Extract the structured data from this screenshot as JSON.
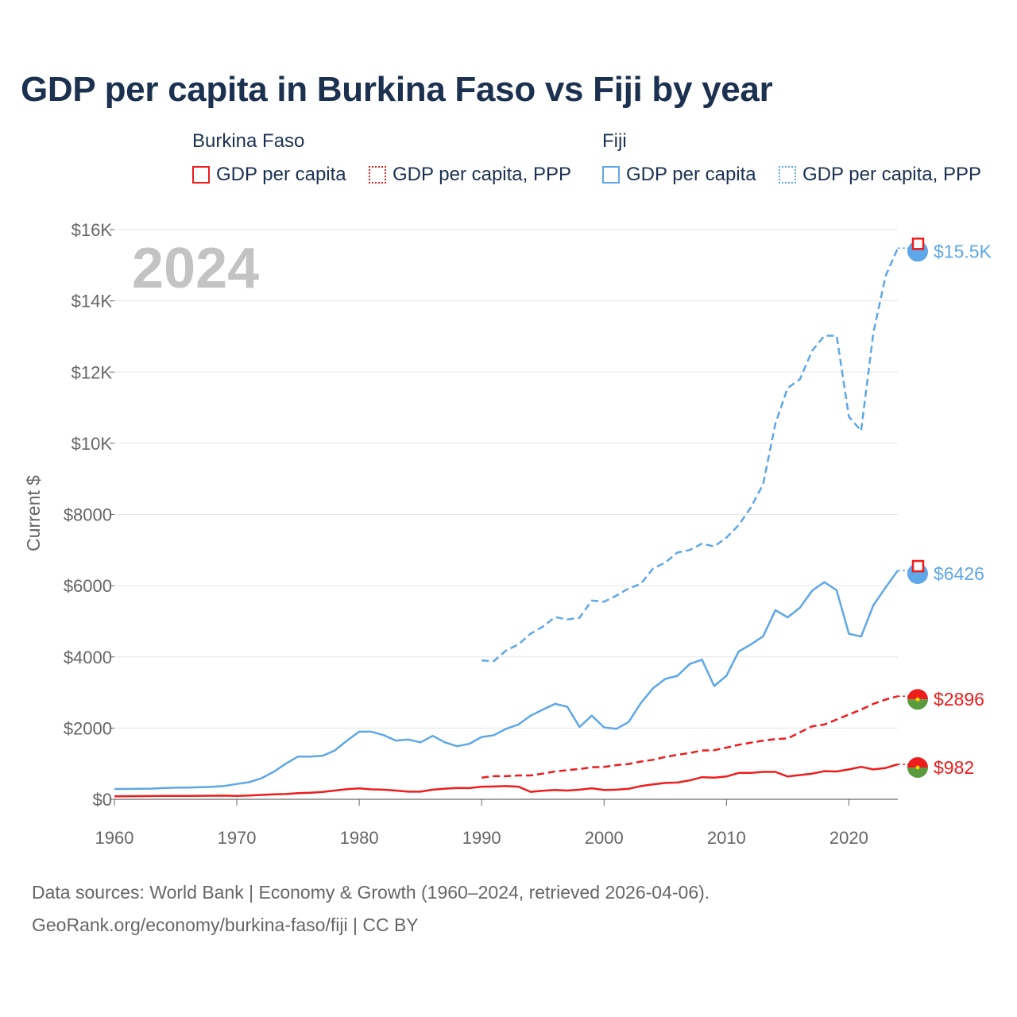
{
  "title": "GDP per capita in Burkina Faso vs Fiji by year",
  "legend": {
    "groups": [
      {
        "name": "Burkina Faso",
        "color": "#ee1c1c",
        "items": [
          {
            "label": "GDP per capita",
            "style": "solid"
          },
          {
            "label": "GDP per capita, PPP",
            "style": "dotted"
          }
        ]
      },
      {
        "name": "Fiji",
        "color": "#5ea7e8",
        "items": [
          {
            "label": "GDP per capita",
            "style": "solid"
          },
          {
            "label": "GDP per capita, PPP",
            "style": "dotted"
          }
        ]
      }
    ]
  },
  "year_label": "2024",
  "footer": {
    "line1": "Data sources: World Bank | Economy & Growth (1960–2024, retrieved 2026-04-06).",
    "line2": "GeoRank.org/economy/burkina-faso/fiji | CC BY"
  },
  "chart_data": {
    "type": "line",
    "title": "GDP per capita in Burkina Faso vs Fiji by year",
    "xlabel": "",
    "ylabel": "Current $",
    "xlim": [
      1960,
      2024
    ],
    "ylim": [
      0,
      16000
    ],
    "x_ticks": [
      1960,
      1970,
      1980,
      1990,
      2000,
      2010,
      2020
    ],
    "y_ticks": [
      0,
      2000,
      4000,
      6000,
      8000,
      10000,
      12000,
      14000,
      16000
    ],
    "y_tick_labels": [
      "$0",
      "$2000",
      "$4000",
      "$6000",
      "$8000",
      "$10K",
      "$12K",
      "$14K",
      "$16K"
    ],
    "grid": true,
    "series": [
      {
        "name": "Fiji GDP per capita, PPP",
        "country": "Fiji",
        "color": "#5ea7e8",
        "dash": "dashed",
        "end_label": "$15.5K",
        "points": [
          [
            1990,
            3900
          ],
          [
            1991,
            3880
          ],
          [
            1992,
            4180
          ],
          [
            1993,
            4350
          ],
          [
            1994,
            4650
          ],
          [
            1995,
            4850
          ],
          [
            1996,
            5120
          ],
          [
            1997,
            5050
          ],
          [
            1998,
            5100
          ],
          [
            1999,
            5580
          ],
          [
            2000,
            5550
          ],
          [
            2001,
            5720
          ],
          [
            2002,
            5920
          ],
          [
            2003,
            6050
          ],
          [
            2004,
            6480
          ],
          [
            2005,
            6650
          ],
          [
            2006,
            6930
          ],
          [
            2007,
            7000
          ],
          [
            2008,
            7180
          ],
          [
            2009,
            7100
          ],
          [
            2010,
            7350
          ],
          [
            2011,
            7700
          ],
          [
            2012,
            8200
          ],
          [
            2013,
            8850
          ],
          [
            2014,
            10550
          ],
          [
            2015,
            11550
          ],
          [
            2016,
            11800
          ],
          [
            2017,
            12600
          ],
          [
            2018,
            13020
          ],
          [
            2019,
            13020
          ],
          [
            2020,
            10750
          ],
          [
            2021,
            10350
          ],
          [
            2022,
            13100
          ],
          [
            2023,
            14700
          ],
          [
            2024,
            15480
          ]
        ]
      },
      {
        "name": "Fiji GDP per capita",
        "country": "Fiji",
        "color": "#5ea7e8",
        "dash": "solid",
        "end_label": "$6426",
        "points": [
          [
            1960,
            290
          ],
          [
            1961,
            290
          ],
          [
            1962,
            295
          ],
          [
            1963,
            300
          ],
          [
            1964,
            315
          ],
          [
            1965,
            325
          ],
          [
            1966,
            330
          ],
          [
            1967,
            340
          ],
          [
            1968,
            350
          ],
          [
            1969,
            375
          ],
          [
            1970,
            430
          ],
          [
            1971,
            480
          ],
          [
            1972,
            590
          ],
          [
            1973,
            770
          ],
          [
            1974,
            1000
          ],
          [
            1975,
            1200
          ],
          [
            1976,
            1200
          ],
          [
            1977,
            1220
          ],
          [
            1978,
            1370
          ],
          [
            1979,
            1650
          ],
          [
            1980,
            1900
          ],
          [
            1981,
            1900
          ],
          [
            1982,
            1800
          ],
          [
            1983,
            1650
          ],
          [
            1984,
            1680
          ],
          [
            1985,
            1600
          ],
          [
            1986,
            1780
          ],
          [
            1987,
            1600
          ],
          [
            1988,
            1490
          ],
          [
            1989,
            1560
          ],
          [
            1990,
            1750
          ],
          [
            1991,
            1800
          ],
          [
            1992,
            1980
          ],
          [
            1993,
            2100
          ],
          [
            1994,
            2350
          ],
          [
            1995,
            2520
          ],
          [
            1996,
            2680
          ],
          [
            1997,
            2600
          ],
          [
            1998,
            2030
          ],
          [
            1999,
            2350
          ],
          [
            2000,
            2020
          ],
          [
            2001,
            1980
          ],
          [
            2002,
            2170
          ],
          [
            2003,
            2700
          ],
          [
            2004,
            3120
          ],
          [
            2005,
            3380
          ],
          [
            2006,
            3470
          ],
          [
            2007,
            3800
          ],
          [
            2008,
            3920
          ],
          [
            2009,
            3180
          ],
          [
            2010,
            3470
          ],
          [
            2011,
            4150
          ],
          [
            2012,
            4350
          ],
          [
            2013,
            4580
          ],
          [
            2014,
            5310
          ],
          [
            2015,
            5110
          ],
          [
            2016,
            5380
          ],
          [
            2017,
            5860
          ],
          [
            2018,
            6100
          ],
          [
            2019,
            5870
          ],
          [
            2020,
            4650
          ],
          [
            2021,
            4570
          ],
          [
            2022,
            5450
          ],
          [
            2023,
            5950
          ],
          [
            2024,
            6426
          ]
        ]
      },
      {
        "name": "Burkina Faso GDP per capita, PPP",
        "country": "Burkina Faso",
        "color": "#ee1c1c",
        "dash": "dashed",
        "end_label": "$2896",
        "points": [
          [
            1990,
            610
          ],
          [
            1991,
            650
          ],
          [
            1992,
            650
          ],
          [
            1993,
            670
          ],
          [
            1994,
            670
          ],
          [
            1995,
            720
          ],
          [
            1996,
            780
          ],
          [
            1997,
            820
          ],
          [
            1998,
            850
          ],
          [
            1999,
            900
          ],
          [
            2000,
            910
          ],
          [
            2001,
            960
          ],
          [
            2002,
            990
          ],
          [
            2003,
            1060
          ],
          [
            2004,
            1110
          ],
          [
            2005,
            1190
          ],
          [
            2006,
            1250
          ],
          [
            2007,
            1300
          ],
          [
            2008,
            1370
          ],
          [
            2009,
            1380
          ],
          [
            2010,
            1450
          ],
          [
            2011,
            1530
          ],
          [
            2012,
            1590
          ],
          [
            2013,
            1650
          ],
          [
            2014,
            1690
          ],
          [
            2015,
            1710
          ],
          [
            2016,
            1880
          ],
          [
            2017,
            2050
          ],
          [
            2018,
            2100
          ],
          [
            2019,
            2240
          ],
          [
            2020,
            2380
          ],
          [
            2021,
            2520
          ],
          [
            2022,
            2680
          ],
          [
            2023,
            2800
          ],
          [
            2024,
            2896
          ]
        ]
      },
      {
        "name": "Burkina Faso GDP per capita",
        "country": "Burkina Faso",
        "color": "#ee1c1c",
        "dash": "solid",
        "end_label": "$982",
        "points": [
          [
            1960,
            85
          ],
          [
            1961,
            88
          ],
          [
            1962,
            90
          ],
          [
            1963,
            92
          ],
          [
            1964,
            93
          ],
          [
            1965,
            95
          ],
          [
            1966,
            97
          ],
          [
            1967,
            98
          ],
          [
            1968,
            100
          ],
          [
            1969,
            102
          ],
          [
            1970,
            97
          ],
          [
            1971,
            105
          ],
          [
            1972,
            122
          ],
          [
            1973,
            138
          ],
          [
            1974,
            148
          ],
          [
            1975,
            175
          ],
          [
            1976,
            185
          ],
          [
            1977,
            205
          ],
          [
            1978,
            245
          ],
          [
            1979,
            285
          ],
          [
            1980,
            305
          ],
          [
            1981,
            280
          ],
          [
            1982,
            270
          ],
          [
            1983,
            245
          ],
          [
            1984,
            215
          ],
          [
            1985,
            215
          ],
          [
            1986,
            270
          ],
          [
            1987,
            300
          ],
          [
            1988,
            320
          ],
          [
            1989,
            315
          ],
          [
            1990,
            355
          ],
          [
            1991,
            360
          ],
          [
            1992,
            370
          ],
          [
            1993,
            355
          ],
          [
            1994,
            210
          ],
          [
            1995,
            240
          ],
          [
            1996,
            260
          ],
          [
            1997,
            245
          ],
          [
            1998,
            270
          ],
          [
            1999,
            310
          ],
          [
            2000,
            260
          ],
          [
            2001,
            270
          ],
          [
            2002,
            295
          ],
          [
            2003,
            370
          ],
          [
            2004,
            420
          ],
          [
            2005,
            460
          ],
          [
            2006,
            470
          ],
          [
            2007,
            530
          ],
          [
            2008,
            620
          ],
          [
            2009,
            610
          ],
          [
            2010,
            640
          ],
          [
            2011,
            740
          ],
          [
            2012,
            740
          ],
          [
            2013,
            770
          ],
          [
            2014,
            770
          ],
          [
            2015,
            640
          ],
          [
            2016,
            680
          ],
          [
            2017,
            720
          ],
          [
            2018,
            790
          ],
          [
            2019,
            780
          ],
          [
            2020,
            840
          ],
          [
            2021,
            910
          ],
          [
            2022,
            840
          ],
          [
            2023,
            880
          ],
          [
            2024,
            982
          ]
        ]
      }
    ]
  }
}
